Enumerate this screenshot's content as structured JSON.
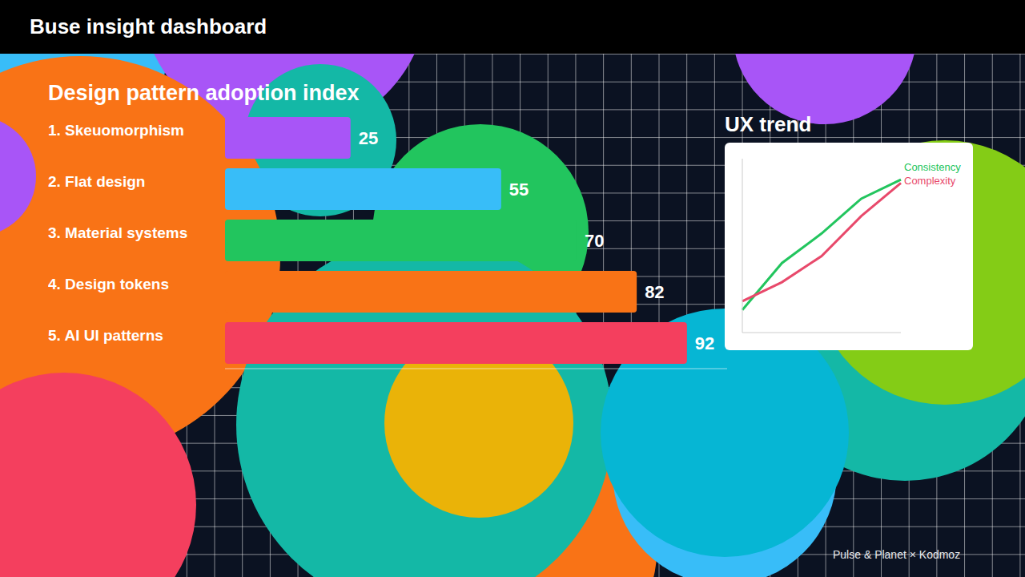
{
  "title": "Buse insight dashboard",
  "footer": "Pulse & Planet × Kodmoz",
  "chart_data": [
    {
      "type": "bar",
      "title": "Design pattern adoption index",
      "orientation": "horizontal",
      "categories": [
        "1. Skeuomorphism",
        "2. Flat design",
        "3. Material systems",
        "4. Design tokens",
        "5. AI UI patterns"
      ],
      "values": [
        25,
        55,
        70,
        82,
        92
      ],
      "colors": [
        "#a855f7",
        "#38bdf8",
        "#22c55e",
        "#f97316",
        "#f43f5e"
      ],
      "xlim": [
        0,
        100
      ],
      "data_labels": true,
      "tick_labels": "y",
      "grid": false
    },
    {
      "type": "line",
      "title": "UX trend",
      "categories": [
        null,
        null,
        null,
        null,
        null
      ],
      "series": [
        {
          "name": "Consistency",
          "color": "#22c55e",
          "values": [
            13,
            40,
            57,
            77,
            88
          ]
        },
        {
          "name": "Complexity",
          "color": "#e8496b",
          "values": [
            18,
            29,
            44,
            67,
            86
          ]
        }
      ],
      "ylim": [
        0,
        100
      ],
      "tick_labels": false,
      "legend": "right",
      "grid": false
    }
  ]
}
